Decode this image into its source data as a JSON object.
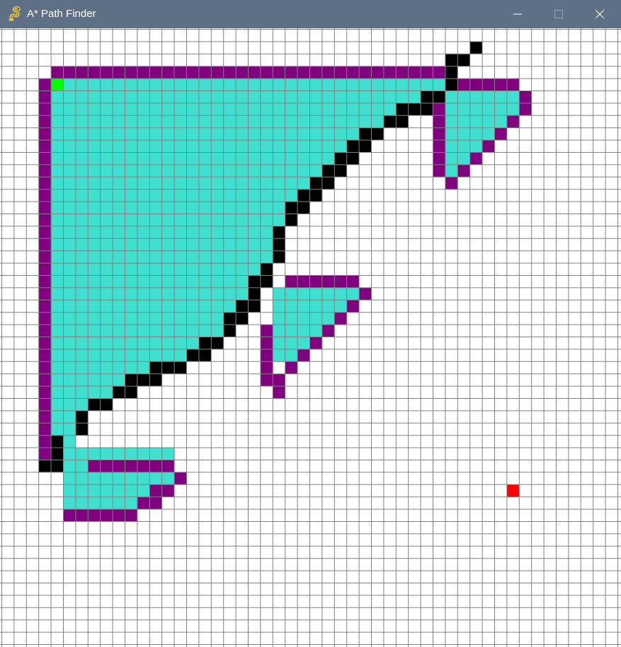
{
  "window": {
    "title": "A* Path Finder",
    "icon": "python-snake-icon",
    "controls": [
      "minimize-icon",
      "maximize-icon",
      "close-icon"
    ]
  },
  "colors": {
    "titlebar": "#5e6f86",
    "background": "#ffffff",
    "grid_line": "#808080",
    "open": "#800080",
    "closed": "#40e0d0",
    "barrier": "#000000",
    "start": "#00ff00",
    "end": "#ff0000"
  },
  "grid": {
    "rows": 50,
    "cols": 50,
    "legend": {
      "start": "start-node",
      "end": "end-node",
      "barrier": "barrier-node",
      "open": "open-set-node",
      "closed": "closed-set-node"
    },
    "start": [
      4,
      4
    ],
    "end": [
      41,
      37
    ],
    "barrier_rows": {
      "1": [
        38
      ],
      "2": [
        36,
        37
      ],
      "3": [
        36
      ],
      "4": [
        36
      ],
      "5": [
        34,
        35
      ],
      "6": [
        32,
        33,
        34
      ],
      "7": [
        31,
        32
      ],
      "8": [
        29,
        30
      ],
      "9": [
        28,
        29
      ],
      "10": [
        27,
        28
      ],
      "11": [
        26,
        27
      ],
      "12": [
        25,
        26
      ],
      "13": [
        24,
        25
      ],
      "14": [
        23,
        24
      ],
      "15": [
        23
      ],
      "16": [
        22
      ],
      "17": [
        22
      ],
      "18": [
        22
      ],
      "19": [
        21
      ],
      "20": [
        20,
        21
      ],
      "21": [
        20
      ],
      "22": [
        19,
        20
      ],
      "23": [
        18,
        19
      ],
      "24": [
        18
      ],
      "25": [
        16,
        17
      ],
      "26": [
        15,
        16
      ],
      "27": [
        12,
        13,
        14
      ],
      "28": [
        10,
        11,
        12
      ],
      "29": [
        9,
        10
      ],
      "30": [
        7,
        8
      ],
      "31": [
        6
      ],
      "32": [
        6
      ],
      "33": [
        4
      ],
      "34": [
        4
      ],
      "35": [
        3,
        4
      ]
    },
    "open_rows": {
      "3": [
        4,
        35
      ],
      "4": [
        3,
        37,
        38,
        39,
        40,
        41
      ],
      "5": [
        3,
        42
      ],
      "6": [
        3,
        35,
        42
      ],
      "7": [
        3,
        35,
        41
      ],
      "8": [
        3,
        35,
        40
      ],
      "9": [
        3,
        35,
        39
      ],
      "10": [
        3,
        35,
        38
      ],
      "11": [
        3,
        35,
        37
      ],
      "12": [
        3,
        36
      ],
      "13": [
        3
      ],
      "14": [
        3
      ],
      "15": [
        3
      ],
      "16": [
        3
      ],
      "17": [
        3
      ],
      "18": [
        3
      ],
      "19": [
        3
      ],
      "20": [
        3,
        23,
        24,
        25,
        26,
        27,
        28
      ],
      "21": [
        3,
        29
      ],
      "22": [
        3,
        28
      ],
      "23": [
        3,
        27
      ],
      "24": [
        3,
        21,
        26
      ],
      "25": [
        3,
        21,
        25
      ],
      "26": [
        3,
        21,
        24
      ],
      "27": [
        3,
        21,
        23
      ],
      "28": [
        3,
        21,
        22
      ],
      "29": [
        3,
        22
      ],
      "30": [
        3
      ],
      "31": [
        3
      ],
      "32": [
        3
      ],
      "33": [
        3
      ],
      "34": [
        3
      ],
      "35": [
        3,
        7,
        8,
        9,
        10,
        11,
        12,
        13
      ],
      "36": [
        14
      ],
      "37": [
        12,
        13
      ],
      "38": [
        11,
        12
      ],
      "39": [
        5,
        6,
        7,
        8,
        9,
        10
      ]
    },
    "open_top_span": [
      4,
      35
    ],
    "closed_rows": {
      "4": [
        [
          5,
          35
        ]
      ],
      "5": [
        [
          4,
          34
        ]
      ],
      "6": [
        [
          4,
          31
        ]
      ],
      "7": [
        [
          4,
          30
        ]
      ],
      "8": [
        [
          4,
          28
        ]
      ],
      "9": [
        [
          4,
          27
        ]
      ],
      "10": [
        [
          4,
          26
        ]
      ],
      "11": [
        [
          4,
          25
        ]
      ],
      "12": [
        [
          4,
          24
        ]
      ],
      "13": [
        [
          4,
          23
        ]
      ],
      "14": [
        [
          4,
          22
        ]
      ],
      "15": [
        [
          4,
          22
        ]
      ],
      "16": [
        [
          4,
          21
        ]
      ],
      "17": [
        [
          4,
          21
        ]
      ],
      "18": [
        [
          4,
          21
        ]
      ],
      "19": [
        [
          4,
          20
        ]
      ],
      "20": [
        [
          4,
          19
        ]
      ],
      "21": [
        [
          4,
          19
        ],
        [
          22,
          28
        ]
      ],
      "22": [
        [
          4,
          18
        ],
        [
          22,
          27
        ]
      ],
      "23": [
        [
          4,
          17
        ],
        [
          22,
          26
        ]
      ],
      "24": [
        [
          4,
          17
        ],
        [
          22,
          25
        ]
      ],
      "25": [
        [
          4,
          15
        ],
        [
          22,
          24
        ]
      ],
      "26": [
        [
          4,
          14
        ],
        [
          22,
          23
        ]
      ],
      "27": [
        [
          4,
          11
        ]
      ],
      "28": [
        [
          4,
          9
        ]
      ],
      "29": [
        [
          4,
          8
        ]
      ],
      "30": [
        [
          4,
          6
        ]
      ],
      "31": [
        [
          4,
          5
        ]
      ],
      "32": [
        [
          4,
          5
        ]
      ],
      "33": [
        [
          4,
          5
        ]
      ],
      "34": [
        [
          5,
          13
        ]
      ],
      "35": [
        [
          5,
          6
        ]
      ],
      "36": [
        [
          5,
          13
        ]
      ],
      "37": [
        [
          5,
          11
        ]
      ],
      "38": [
        [
          5,
          10
        ]
      ]
    },
    "closed_right_rows": {
      "5": [
        [
          36,
          41
        ]
      ],
      "6": [
        [
          36,
          41
        ]
      ],
      "7": [
        [
          36,
          40
        ]
      ],
      "8": [
        [
          36,
          39
        ]
      ],
      "9": [
        [
          36,
          38
        ]
      ],
      "10": [
        [
          36,
          37
        ]
      ],
      "11": [
        [
          36,
          36
        ]
      ]
    }
  }
}
